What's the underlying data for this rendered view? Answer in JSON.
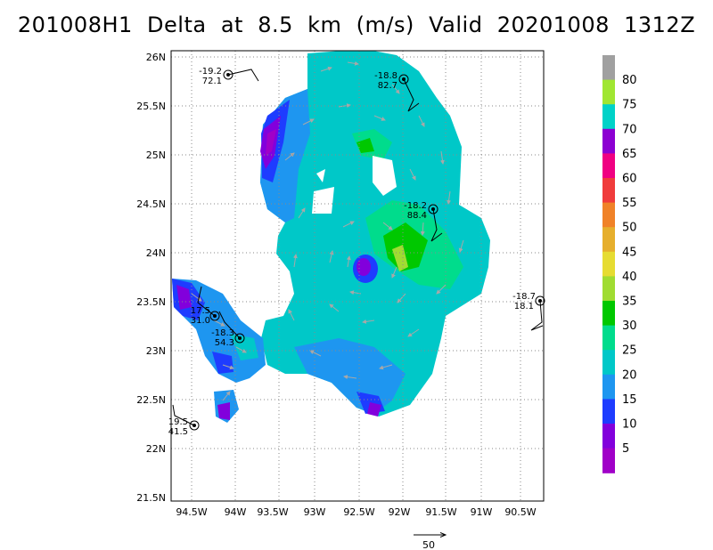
{
  "title": "201008H1  Delta  at  8.5  km  (m/s)  Valid  20201008  1312Z",
  "map": {
    "lat_labels": [
      "26N",
      "25.5N",
      "25N",
      "24.5N",
      "24N",
      "23.5N",
      "23N",
      "22.5N",
      "22N",
      "21.5N"
    ],
    "lon_labels": [
      "94.5W",
      "94W",
      "93.5W",
      "93W",
      "92.5W",
      "92W",
      "91.5W",
      "91W",
      "90.5W"
    ],
    "lat_range": [
      21.5,
      26.05
    ],
    "lon_range": [
      -94.8,
      -90.3
    ],
    "grid": "dotted"
  },
  "colorbar": {
    "labels": [
      "80",
      "75",
      "70",
      "65",
      "60",
      "55",
      "50",
      "45",
      "40",
      "35",
      "30",
      "25",
      "20",
      "15",
      "10",
      "5"
    ],
    "colors": [
      "#a0a0a0",
      "#a0e632",
      "#00d2c8",
      "#8c00d2",
      "#f00082",
      "#f03c3c",
      "#f08228",
      "#e6af2d",
      "#e6dc32",
      "#a0dc32",
      "#00c800",
      "#00dc8c",
      "#00c8c8",
      "#1e96f0",
      "#1e3cff",
      "#8200dc",
      "#a000c8"
    ]
  },
  "vector_scale": {
    "label": "50"
  },
  "observations": [
    {
      "line1": "-19.2",
      "line2": "72.1"
    },
    {
      "line1": "-18.8",
      "line2": "82.7"
    },
    {
      "line1": "-18.2",
      "line2": "88.4"
    },
    {
      "line1": "-18.7",
      "line2": "18.1"
    },
    {
      "line1": "17.5",
      "line2": "31.0"
    },
    {
      "line1": "-18.3",
      "line2": "54.3"
    },
    {
      "line1": "19.5",
      "line2": "41.5"
    }
  ]
}
